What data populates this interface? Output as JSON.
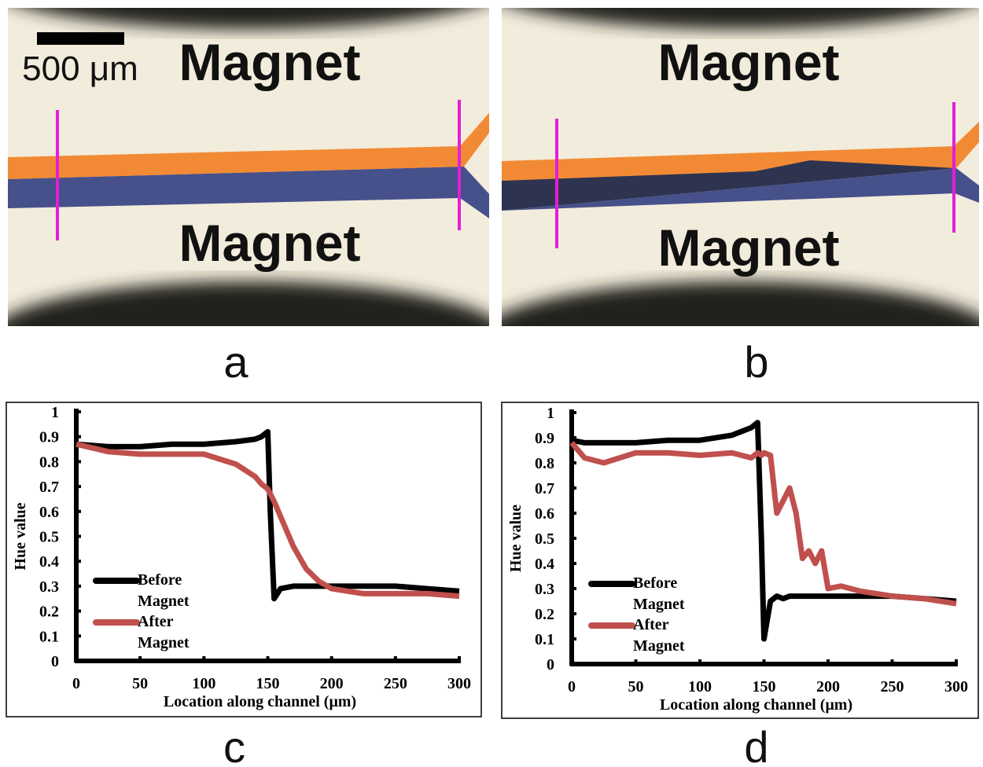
{
  "panels": [
    {
      "label": "a",
      "magnet_top": "Magnet",
      "magnet_bottom": "Magnet",
      "scale_bar": "500 μm"
    },
    {
      "label": "b",
      "magnet_top": "Magnet",
      "magnet_bottom": "Magnet"
    }
  ],
  "chart_data": [
    {
      "type": "line",
      "caption": "c",
      "x_label": "Location along channel (μm)",
      "y_label": "Hue value",
      "x": [
        0,
        25,
        50,
        75,
        100,
        125,
        140,
        145,
        150,
        152,
        155,
        160,
        170,
        180,
        190,
        200,
        225,
        250,
        275,
        300
      ],
      "series": [
        {
          "name": "Before Magnet",
          "color": "#000000",
          "values": [
            0.87,
            0.86,
            0.86,
            0.87,
            0.87,
            0.88,
            0.89,
            0.9,
            0.92,
            0.6,
            0.25,
            0.29,
            0.3,
            0.3,
            0.3,
            0.3,
            0.3,
            0.3,
            0.29,
            0.28
          ]
        },
        {
          "name": "After Magnet",
          "color": "#c0504d",
          "values": [
            0.87,
            0.84,
            0.83,
            0.83,
            0.83,
            0.79,
            0.74,
            0.71,
            0.69,
            0.67,
            0.64,
            0.58,
            0.46,
            0.37,
            0.32,
            0.29,
            0.27,
            0.27,
            0.27,
            0.26
          ]
        }
      ],
      "xlim": [
        0,
        300
      ],
      "xticks": [
        0,
        50,
        100,
        150,
        200,
        250,
        300
      ],
      "ylim": [
        0,
        1
      ],
      "yticks": [
        0,
        0.1,
        0.2,
        0.3,
        0.4,
        0.5,
        0.6,
        0.7,
        0.8,
        0.9,
        1
      ],
      "grid": false,
      "legend": "lower left"
    },
    {
      "type": "line",
      "caption": "d",
      "x_label": "Location along channel (μm)",
      "y_label": "Hue value",
      "x": [
        0,
        10,
        25,
        50,
        75,
        100,
        125,
        140,
        145,
        148,
        150,
        155,
        160,
        165,
        170,
        175,
        180,
        185,
        190,
        195,
        200,
        210,
        225,
        250,
        275,
        300
      ],
      "series": [
        {
          "name": "Before Magnet",
          "color": "#000000",
          "values": [
            0.89,
            0.88,
            0.88,
            0.88,
            0.89,
            0.89,
            0.91,
            0.94,
            0.96,
            0.5,
            0.1,
            0.25,
            0.27,
            0.26,
            0.27,
            0.27,
            0.27,
            0.27,
            0.27,
            0.27,
            0.27,
            0.27,
            0.27,
            0.27,
            0.26,
            0.25
          ]
        },
        {
          "name": "After Magnet",
          "color": "#c0504d",
          "values": [
            0.88,
            0.82,
            0.8,
            0.84,
            0.84,
            0.83,
            0.84,
            0.82,
            0.84,
            0.83,
            0.84,
            0.83,
            0.6,
            0.65,
            0.7,
            0.6,
            0.42,
            0.45,
            0.4,
            0.45,
            0.3,
            0.31,
            0.29,
            0.27,
            0.26,
            0.24
          ]
        }
      ],
      "xlim": [
        0,
        300
      ],
      "xticks": [
        0,
        50,
        100,
        150,
        200,
        250,
        300
      ],
      "ylim": [
        0,
        1
      ],
      "yticks": [
        0,
        0.1,
        0.2,
        0.3,
        0.4,
        0.5,
        0.6,
        0.7,
        0.8,
        0.9,
        1
      ],
      "grid": false,
      "legend": "lower left"
    }
  ]
}
